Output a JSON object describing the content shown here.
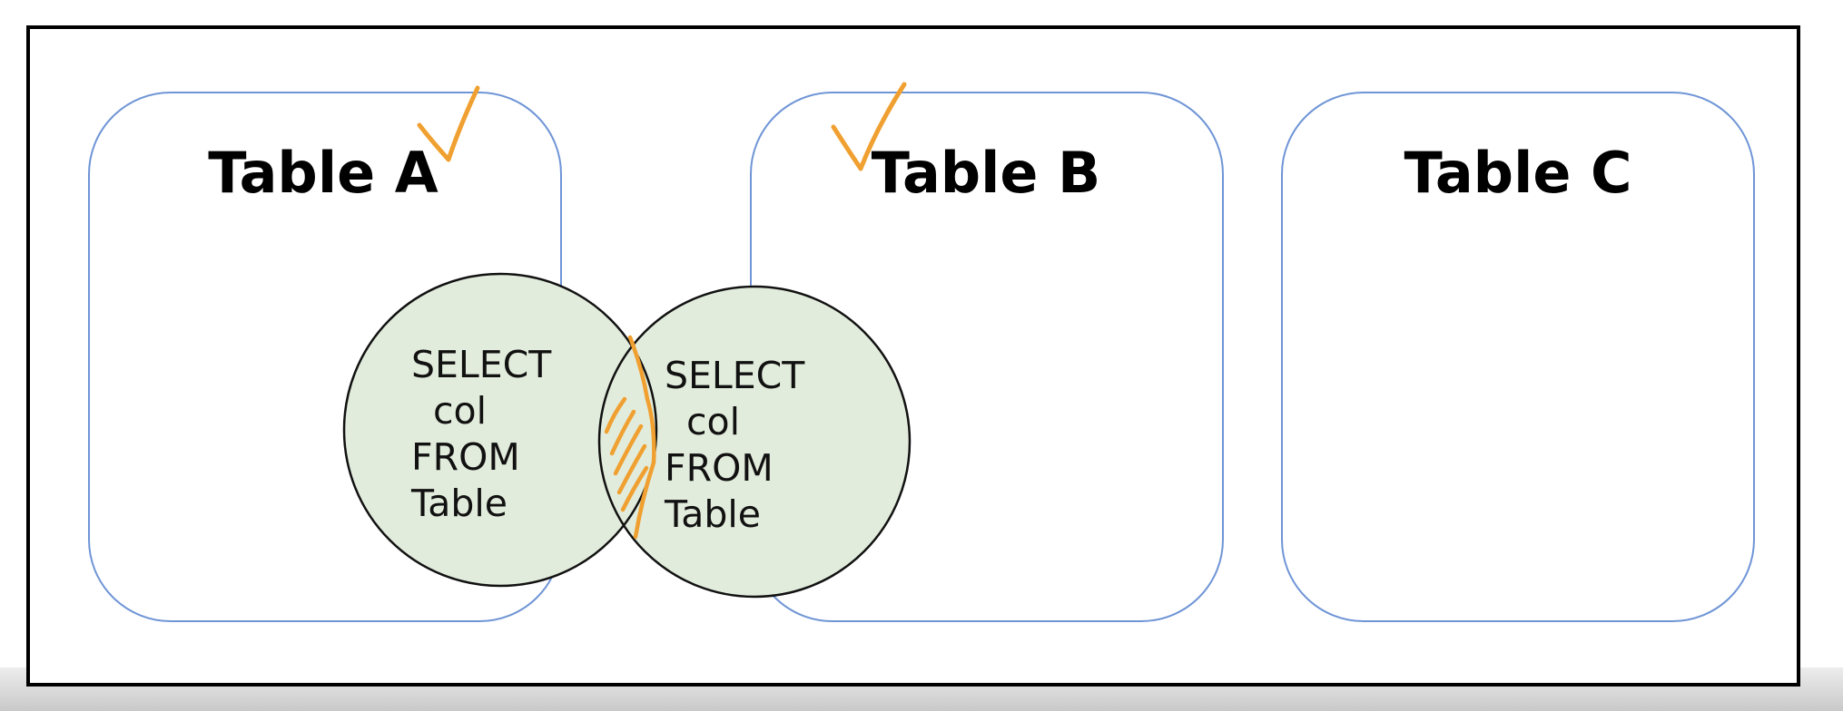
{
  "colors": {
    "frame_border": "#000000",
    "table_box_border": "#6f95d6",
    "circle_fill": "#e2ecdc",
    "circle_border": "#111111",
    "annotation": "#f0a030"
  },
  "tables": [
    {
      "title": "Table A",
      "checked": true
    },
    {
      "title": "Table B",
      "checked": true
    },
    {
      "title": "Table C",
      "checked": false
    }
  ],
  "queries": [
    {
      "line1": "SELECT",
      "line2": "col",
      "line3": "FROM",
      "line4": "Table"
    },
    {
      "line1": "SELECT",
      "line2": "col",
      "line3": "FROM",
      "line4": "Table"
    }
  ],
  "annotations": {
    "check_icon": "checkmark",
    "overlap_marker": "hatched-overlap-region"
  }
}
